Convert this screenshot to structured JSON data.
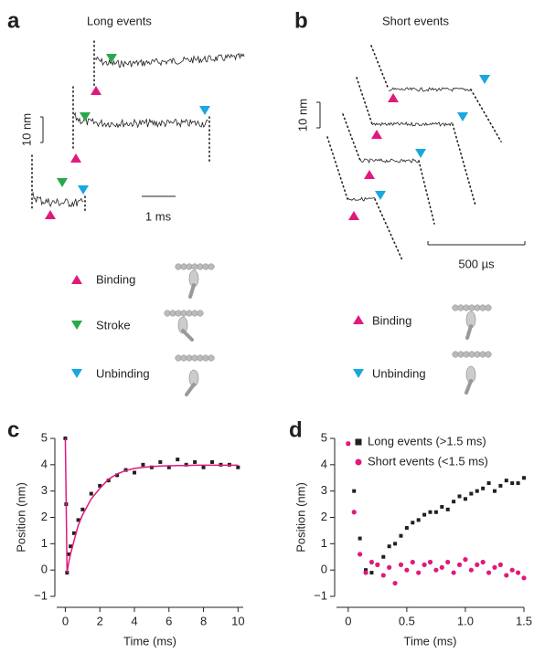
{
  "panel_a": {
    "label": "a",
    "title": "Long events",
    "scale_y": "10 nm",
    "scale_x": "1 ms",
    "legend": [
      "Binding",
      "Stroke",
      "Unbinding"
    ]
  },
  "panel_b": {
    "label": "b",
    "title": "Short events",
    "scale_y": "10 nm",
    "scale_x": "500 µs",
    "legend": [
      "Binding",
      "Unbinding"
    ]
  },
  "chart_data": [
    {
      "type": "line",
      "panel_label": "c",
      "x_label": "Time (ms)",
      "y_label": "Position (nm)",
      "x": [
        0,
        0.05,
        0.1,
        0.2,
        0.3,
        0.5,
        0.75,
        1,
        1.5,
        2,
        2.5,
        3,
        3.5,
        4,
        4.5,
        5,
        5.5,
        6,
        6.5,
        7,
        7.5,
        8,
        8.5,
        9,
        9.5,
        10
      ],
      "series": [
        {
          "color": "#231f20",
          "mode": "markers",
          "values": [
            5,
            2.5,
            -0.1,
            0.6,
            0.9,
            1.4,
            1.9,
            2.3,
            2.9,
            3.2,
            3.4,
            3.6,
            3.8,
            3.7,
            4.0,
            3.9,
            4.1,
            3.9,
            4.2,
            4.0,
            4.1,
            3.9,
            4.1,
            4.0,
            4.0,
            3.9
          ]
        },
        {
          "color": "#e0197d",
          "mode": "line",
          "values": [
            5,
            2.5,
            -0.1,
            0.3,
            0.6,
            1.1,
            1.7,
            2.1,
            2.7,
            3.1,
            3.45,
            3.65,
            3.78,
            3.86,
            3.9,
            3.93,
            3.95,
            3.96,
            3.97,
            3.97,
            3.98,
            3.98,
            3.98,
            3.98,
            3.98,
            3.98
          ]
        }
      ],
      "xlim": [
        -0.5,
        10.3
      ],
      "ylim": [
        -1,
        5
      ],
      "xticks": [
        0,
        2,
        4,
        6,
        8,
        10
      ],
      "yticks": [
        {
          "value": -1,
          "label": "−1"
        },
        0,
        1,
        2,
        3,
        4,
        5
      ]
    },
    {
      "type": "scatter",
      "panel_label": "d",
      "x_label": "Time (ms)",
      "y_label": "Position (nm)",
      "x": [
        0,
        0.05,
        0.1,
        0.15,
        0.2,
        0.25,
        0.3,
        0.35,
        0.4,
        0.45,
        0.5,
        0.55,
        0.6,
        0.65,
        0.7,
        0.75,
        0.8,
        0.85,
        0.9,
        0.95,
        1,
        1.05,
        1.1,
        1.15,
        1.2,
        1.25,
        1.3,
        1.35,
        1.4,
        1.45,
        1.5
      ],
      "series": [
        {
          "name": "Long events  (>1.5 ms)",
          "color": "#231f20",
          "marker": "square",
          "values": [
            4.8,
            3.0,
            1.2,
            0.0,
            -0.1,
            0.2,
            0.5,
            0.9,
            1.0,
            1.3,
            1.6,
            1.8,
            1.9,
            2.1,
            2.2,
            2.2,
            2.4,
            2.3,
            2.6,
            2.8,
            2.7,
            2.9,
            3.0,
            3.1,
            3.3,
            3.0,
            3.2,
            3.4,
            3.3,
            3.3,
            3.5
          ]
        },
        {
          "name": "Short events (<1.5 ms)",
          "color": "#e0197d",
          "marker": "circle",
          "values": [
            4.8,
            2.2,
            0.6,
            -0.1,
            0.3,
            0.2,
            -0.2,
            0.1,
            -0.5,
            0.2,
            0.0,
            0.3,
            -0.1,
            0.2,
            0.3,
            0.0,
            0.1,
            0.3,
            -0.1,
            0.2,
            0.4,
            0.0,
            0.2,
            0.3,
            -0.1,
            0.1,
            0.2,
            -0.2,
            0.0,
            -0.1,
            -0.3
          ]
        }
      ],
      "xlim": [
        -0.1,
        1.5
      ],
      "ylim": [
        -1,
        5
      ],
      "xticks": [
        0,
        0.5,
        {
          "value": 1,
          "label": "1.0"
        },
        1.5
      ],
      "yticks": [
        {
          "value": -1,
          "label": "−1"
        },
        0,
        1,
        2,
        3,
        4,
        5
      ],
      "legend": "upper right"
    }
  ]
}
